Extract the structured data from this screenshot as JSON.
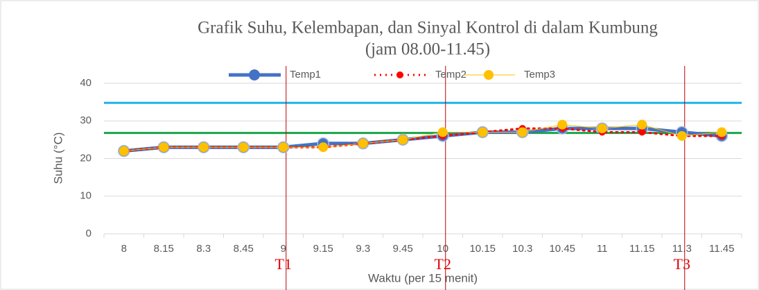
{
  "chart_data": {
    "type": "line",
    "title": "Grafik Suhu, Kelembapan, dan Sinyal Kontrol di dalam Kumbung",
    "subtitle": "(jam 08.00-11.45)",
    "x_label": "Waktu (per 15 menit)",
    "y_label": "Suhu (°C)",
    "categories": [
      "8",
      "8.15",
      "8.3",
      "8.45",
      "9",
      "9.15",
      "9.3",
      "9.45",
      "10",
      "10.15",
      "10.3",
      "10.45",
      "11",
      "11.15",
      "11.3",
      "11.45"
    ],
    "series": [
      {
        "name": "Temp1",
        "color": "#4472c4",
        "values": [
          22,
          23,
          23,
          23,
          23,
          24,
          24,
          25,
          26,
          27,
          27,
          28,
          28,
          28,
          27,
          26
        ]
      },
      {
        "name": "Temp2",
        "color": "#ff0000",
        "values": [
          22,
          23,
          23,
          23,
          23,
          23,
          24,
          25,
          26,
          27,
          28,
          28,
          27,
          27,
          26,
          26
        ]
      },
      {
        "name": "Temp3",
        "color": "#ffc000",
        "values": [
          22,
          23,
          23,
          23,
          23,
          23,
          24,
          25,
          27,
          27,
          27,
          29,
          28,
          29,
          26,
          27
        ]
      }
    ],
    "reference_lines": [
      {
        "value": 34.8,
        "color": "#1fb4e6"
      },
      {
        "value": 26.8,
        "color": "#16a54a"
      }
    ],
    "annotations": [
      {
        "text": "T1",
        "category": "9"
      },
      {
        "text": "T2",
        "category": "10"
      },
      {
        "text": "T3",
        "category": "11.3"
      }
    ],
    "ylim": [
      0,
      40
    ],
    "yticks": [
      0,
      10,
      20,
      30,
      40
    ],
    "grid": true,
    "legend": "top"
  }
}
